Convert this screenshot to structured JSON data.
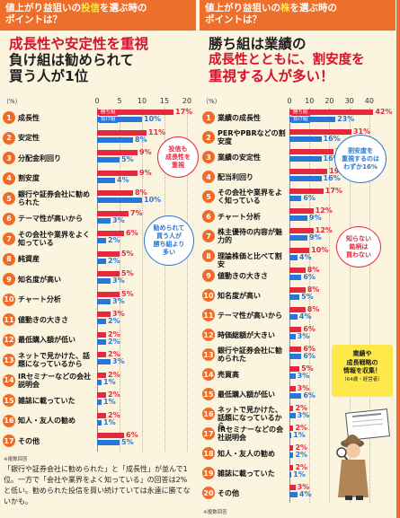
{
  "left": {
    "top_label": {
      "pre": "値上がり益狙いの",
      "hl": "投信",
      "post": "を選ぶ時の",
      "line2": "ポイントは？"
    },
    "headline": [
      "成長性や安定性を重視",
      "負け組は勧められて",
      "買う人が1位"
    ],
    "axis": {
      "unit": "（%）",
      "ticks": [
        "0",
        "5",
        "10",
        "15",
        "20"
      ]
    },
    "legend": {
      "win": "勝ち組",
      "lose": "負け組"
    },
    "bubbles": [
      "投信も\n成長性を\n重視",
      "勧められて\n買う人が\n勝ち組より\n多い"
    ],
    "note": "※複数回答",
    "caption": "「銀行や証券会社に勧められた」と「成長性」が並んで1位。一方で「会社や業界をよく知っている」の回答は2%と低い。勧められた投信を買い続けていては永遠に勝てないかも。"
  },
  "right": {
    "top_label": {
      "pre": "値上がり益狙いの",
      "hl": "株",
      "post": "を選ぶ時の",
      "line2": "ポイントは？"
    },
    "headline": [
      "勝ち組は業績の",
      "成長性とともに、割安度を",
      "重視する人が多い！"
    ],
    "axis": {
      "unit": "（%）",
      "ticks": [
        "0",
        "10",
        "20",
        "30",
        "40"
      ]
    },
    "legend": {
      "win": "勝ち組",
      "lose": "負け組"
    },
    "bubbles": [
      "割安度を\n重視するのは\nわずか16%",
      "知らない\n銘柄は\n買わない"
    ],
    "badge": {
      "line1": "業績や",
      "line2": "成長戦略の",
      "line3": "情報を収集！",
      "sub": "（64歳・経営者）"
    },
    "note": "※複数回答"
  },
  "colors": {
    "win": "#e6283f",
    "lose": "#2976d8",
    "accent": "#ed6f2b",
    "background": "#fbf4df"
  },
  "chart_data": [
    {
      "type": "bar",
      "unit": "%",
      "xlim": [
        0,
        20
      ],
      "categories": [
        "成長性",
        "安定性",
        "分配金利回り",
        "割安度",
        "銀行や証券会社に勧められた",
        "テーマ性が高いから",
        "その会社や業界をよく知っている",
        "純資産",
        "知名度が高い",
        "チャート分析",
        "値動きの大きさ",
        "最低購入額が低い",
        "ネットで見かけた、話題になっているから",
        "IRセミナーなどの会社説明会",
        "雑誌に載っていた",
        "知人・友人の勧め",
        "その他"
      ],
      "series": [
        {
          "name": "勝ち組",
          "values": [
            17,
            11,
            9,
            9,
            8,
            7,
            6,
            5,
            5,
            5,
            3,
            2,
            2,
            2,
            2,
            2,
            6
          ]
        },
        {
          "name": "負け組",
          "values": [
            10,
            8,
            5,
            4,
            10,
            3,
            2,
            2,
            3,
            3,
            2,
            2,
            3,
            1,
            1,
            1,
            5
          ]
        }
      ]
    },
    {
      "type": "bar",
      "unit": "%",
      "xlim": [
        0,
        45
      ],
      "categories": [
        "業績の成長性",
        "PERやPBRなどの割安度",
        "業績の安定性",
        "配当利回り",
        "その会社や業界をよく知っている",
        "チャート分析",
        "株主優待の内容が魅力的",
        "理論株価と比べて割安",
        "値動きの大きさ",
        "知名度が高い",
        "テーマ性が高いから",
        "時価総額が大きい",
        "銀行や証券会社に勧められた",
        "売買高",
        "最低購入額が低い",
        "ネットで見かけた、話題になっているから",
        "IRセミナーなどの会社説明会",
        "知人・友人の勧め",
        "雑誌に載っていた",
        "その他"
      ],
      "series": [
        {
          "name": "勝ち組",
          "values": [
            42,
            31,
            22,
            19,
            17,
            12,
            12,
            10,
            8,
            8,
            8,
            6,
            6,
            5,
            3,
            2,
            2,
            2,
            2,
            3
          ]
        },
        {
          "name": "負け組",
          "values": [
            23,
            16,
            16,
            16,
            6,
            9,
            9,
            4,
            6,
            5,
            4,
            3,
            6,
            3,
            6,
            3,
            1,
            2,
            1,
            4
          ]
        }
      ]
    }
  ]
}
